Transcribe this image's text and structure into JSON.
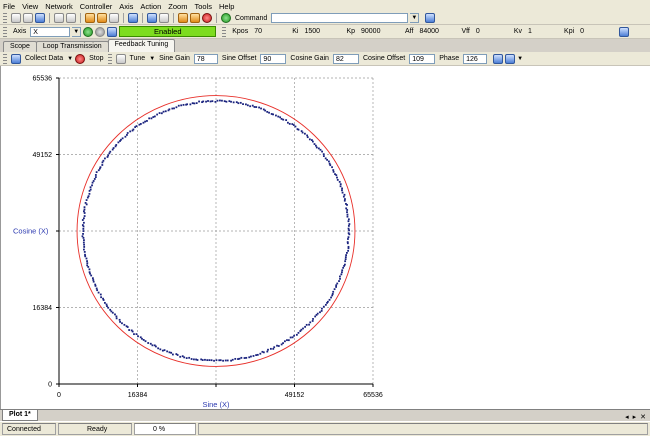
{
  "menu": [
    "File",
    "View",
    "Network",
    "Controller",
    "Axis",
    "Action",
    "Zoom",
    "Tools",
    "Help"
  ],
  "toolbar1": {
    "command_label": "Command",
    "command_value": ""
  },
  "toolbar2": {
    "axis_label": "Axis",
    "axis_value": "X",
    "enabled_label": "Enabled",
    "params": [
      {
        "label": "Kpos",
        "value": "70"
      },
      {
        "label": "Ki",
        "value": "1500"
      },
      {
        "label": "Kp",
        "value": "90000"
      },
      {
        "label": "Aff",
        "value": "84000"
      },
      {
        "label": "Vff",
        "value": "0"
      },
      {
        "label": "Kv",
        "value": "1"
      },
      {
        "label": "Kpi",
        "value": "0"
      }
    ]
  },
  "tabs": [
    {
      "label": "Scope",
      "active": false
    },
    {
      "label": "Loop Transmission",
      "active": false
    },
    {
      "label": "Feedback Tuning",
      "active": true
    }
  ],
  "toolbar3": {
    "collect_label": "Collect Data",
    "stop_label": "Stop",
    "tune_label": "Tune",
    "fields": [
      {
        "label": "Sine Gain",
        "value": "78"
      },
      {
        "label": "Sine Offset",
        "value": "90"
      },
      {
        "label": "Cosine Gain",
        "value": "82"
      },
      {
        "label": "Cosine Offset",
        "value": "109"
      },
      {
        "label": "Phase",
        "value": "126"
      }
    ]
  },
  "chart_data": {
    "type": "scatter",
    "xlabel": "Sine (X)",
    "ylabel": "Cosine (X)",
    "xlim": [
      0,
      65536
    ],
    "ylim": [
      0,
      65536
    ],
    "xticks": [
      "0",
      "16384",
      "32768",
      "49152",
      "65536"
    ],
    "yticks": [
      "0",
      "16384",
      "32768",
      "49152",
      "65536"
    ],
    "x_tick_values": [
      0,
      16384,
      32768,
      49152,
      65536
    ],
    "y_tick_values": [
      0,
      16384,
      32768,
      49152,
      65536
    ],
    "visible_x_tick_labels": [
      "0",
      "16384",
      "",
      "49152",
      "65536"
    ],
    "visible_y_tick_labels": [
      "0",
      "16384",
      "",
      "49152",
      "65536"
    ],
    "grid": true,
    "reference_circle": {
      "center_x": 32768,
      "center_y": 32768,
      "radius": 29000,
      "color": "#e8302a"
    },
    "series": [
      {
        "color": "#1a237e",
        "center_x": 32768,
        "center_y": 32768,
        "radius_x": 27750,
        "radius_y": 27800,
        "point_count": 360
      }
    ]
  },
  "bottom": {
    "plot_tab": "Plot 1*"
  },
  "status": {
    "connection": "Connected",
    "state": "Ready",
    "progress": "0 %"
  }
}
